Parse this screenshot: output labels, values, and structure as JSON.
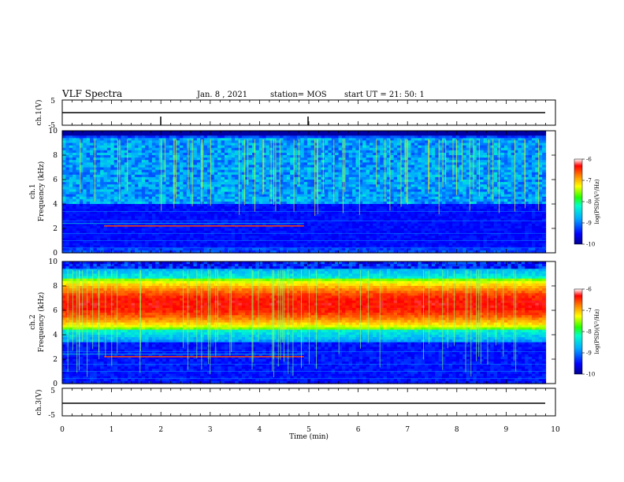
{
  "header": {
    "title": "VLF Spectra",
    "date": "Jan. 8 , 2021",
    "station": "station= MOS",
    "start": "start UT =  21: 50: 1"
  },
  "colors": {
    "background": "#000080",
    "colormap": [
      "#00008f",
      "#0000ff",
      "#00aaff",
      "#00ffcc",
      "#22ff00",
      "#ffff00",
      "#ff8800",
      "#ff0000",
      "#ffffff"
    ]
  },
  "chart_data": [
    {
      "type": "line",
      "panel": "ch.1(V)",
      "ylabel": "ch.1(V)",
      "ylim": [
        -5,
        5
      ],
      "yticks": [
        "5",
        "-5"
      ],
      "xlim": [
        0,
        10
      ],
      "series": [
        {
          "x": [
            0,
            9.8
          ],
          "values": [
            0,
            0
          ]
        }
      ]
    },
    {
      "type": "heatmap",
      "panel": "ch.1 spectrogram",
      "ylabel": "ch.1\nFrequency (kHz)",
      "ylabel_line1": "ch.1",
      "ylabel_line2": "Frequency (kHz)",
      "ylim": [
        0,
        10
      ],
      "yticks": [
        "0",
        "2",
        "4",
        "6",
        "8",
        "10"
      ],
      "xlim": [
        0,
        10
      ],
      "colorbar": {
        "label": "log(PSD)(V²/Hz)",
        "range": [
          -10,
          -6
        ],
        "ticks": [
          "-6",
          "-7",
          "-8",
          "-9",
          "-10"
        ]
      },
      "dominant_band_khz": [
        4,
        9.4
      ],
      "noted_lines_khz": [
        2.2
      ]
    },
    {
      "type": "heatmap",
      "panel": "ch.2 spectrogram",
      "ylabel": "ch.2\nFrequency (kHz)",
      "ylabel_line1": "ch.2",
      "ylabel_line2": "Frequency (kHz)",
      "ylim": [
        0,
        10
      ],
      "yticks": [
        "0",
        "2",
        "4",
        "6",
        "8",
        "10"
      ],
      "xlim": [
        0,
        10
      ],
      "colorbar": {
        "label": "log(PSD)(V²/Hz)",
        "range": [
          -10,
          -6
        ],
        "ticks": [
          "-6",
          "-7",
          "-8",
          "-9",
          "-10"
        ]
      },
      "dominant_band_khz": [
        4.5,
        8.5
      ],
      "noted_lines_khz": [
        2.2
      ]
    },
    {
      "type": "line",
      "panel": "ch.3(V)",
      "ylabel": "ch.3(V)",
      "ylim": [
        -5,
        5
      ],
      "yticks": [
        "5",
        "-5"
      ],
      "xlim": [
        0,
        10
      ],
      "xlabel": "Time (min)",
      "xticks": [
        "0",
        "1",
        "2",
        "3",
        "4",
        "5",
        "6",
        "7",
        "8",
        "9",
        "10"
      ],
      "series": [
        {
          "x": [
            0,
            9.8
          ],
          "values": [
            0,
            0
          ]
        }
      ]
    }
  ]
}
